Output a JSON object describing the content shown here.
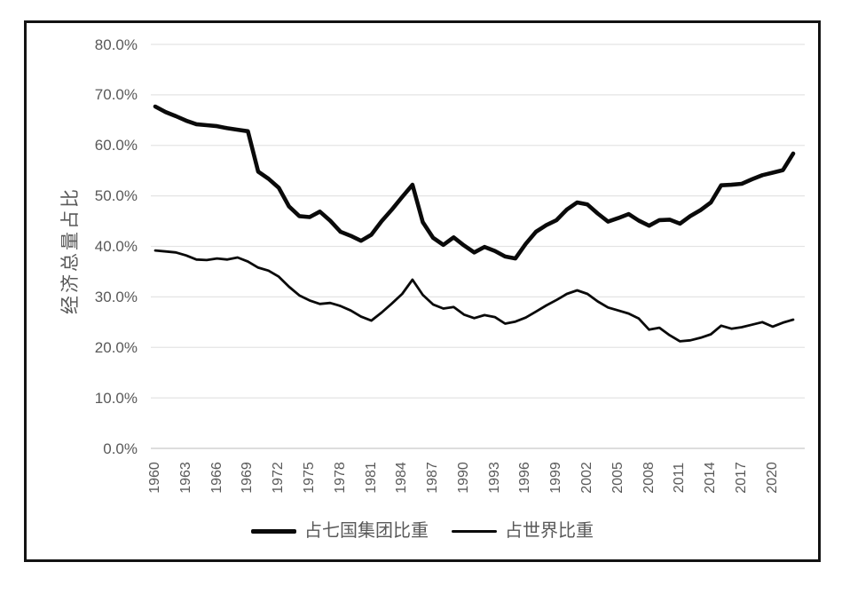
{
  "chart_data": {
    "type": "line",
    "title": "",
    "ylabel": "经济总量占比",
    "xlabel": "",
    "ylim": [
      0,
      80
    ],
    "ytick_step": 10,
    "grid": "horizontal",
    "legend_position": "bottom",
    "x": [
      1960,
      1961,
      1962,
      1963,
      1964,
      1965,
      1966,
      1967,
      1968,
      1969,
      1970,
      1971,
      1972,
      1973,
      1974,
      1975,
      1976,
      1977,
      1978,
      1979,
      1980,
      1981,
      1982,
      1983,
      1984,
      1985,
      1986,
      1987,
      1988,
      1989,
      1990,
      1991,
      1992,
      1993,
      1994,
      1995,
      1996,
      1997,
      1998,
      1999,
      2000,
      2001,
      2002,
      2003,
      2004,
      2005,
      2006,
      2007,
      2008,
      2009,
      2010,
      2011,
      2012,
      2013,
      2014,
      2015,
      2016,
      2017,
      2018,
      2019,
      2020,
      2021,
      2022
    ],
    "series": [
      {
        "name": "占七国集团比重",
        "stroke_width": 4.6,
        "swatch_height": 5,
        "values": [
          67.7,
          66.6,
          65.8,
          64.9,
          64.2,
          64.0,
          63.8,
          63.4,
          63.1,
          62.8,
          54.8,
          53.4,
          51.6,
          47.9,
          46.0,
          45.8,
          46.9,
          45.1,
          42.9,
          42.1,
          41.1,
          42.3,
          45.0,
          47.3,
          49.8,
          52.2,
          44.8,
          41.7,
          40.3,
          41.8,
          40.2,
          38.8,
          39.9,
          39.1,
          38.0,
          37.6,
          40.5,
          42.9,
          44.2,
          45.2,
          47.3,
          48.7,
          48.3,
          46.5,
          44.9,
          45.6,
          46.4,
          45.1,
          44.1,
          45.2,
          45.3,
          44.5,
          46.0,
          47.2,
          48.7,
          52.1,
          52.2,
          52.4,
          53.3,
          54.1,
          54.6,
          55.1,
          58.4
        ]
      },
      {
        "name": "占世界比重",
        "stroke_width": 2.8,
        "swatch_height": 3,
        "values": [
          39.2,
          39.0,
          38.8,
          38.2,
          37.4,
          37.3,
          37.6,
          37.4,
          37.8,
          37.0,
          35.8,
          35.2,
          34.0,
          32.0,
          30.3,
          29.3,
          28.6,
          28.8,
          28.2,
          27.3,
          26.1,
          25.3,
          26.9,
          28.7,
          30.6,
          33.4,
          30.4,
          28.5,
          27.7,
          28.0,
          26.5,
          25.8,
          26.4,
          26.0,
          24.7,
          25.1,
          25.9,
          27.1,
          28.3,
          29.4,
          30.6,
          31.3,
          30.6,
          29.1,
          27.9,
          27.3,
          26.7,
          25.7,
          23.5,
          23.9,
          22.4,
          21.2,
          21.4,
          21.9,
          22.6,
          24.3,
          23.7,
          24.0,
          24.5,
          25.0,
          24.1,
          24.9,
          25.5
        ]
      }
    ],
    "y_tick_labels": [
      "80.0%",
      "70.0%",
      "60.0%",
      "50.0%",
      "40.0%",
      "30.0%",
      "20.0%",
      "10.0%",
      "0.0%"
    ],
    "x_tick_labels": [
      "1960",
      "1963",
      "1966",
      "1969",
      "1972",
      "1975",
      "1978",
      "1981",
      "1984",
      "1987",
      "1990",
      "1993",
      "1996",
      "1999",
      "2002",
      "2005",
      "2008",
      "2011",
      "2014",
      "2017",
      "2020"
    ]
  },
  "colors": {
    "series_stroke": "#0a0a0a",
    "gridline": "#e4e4e4",
    "axis_line": "#d2d2d2",
    "tick_text": "#595959",
    "frame_border": "#131313",
    "background": "#ffffff"
  }
}
